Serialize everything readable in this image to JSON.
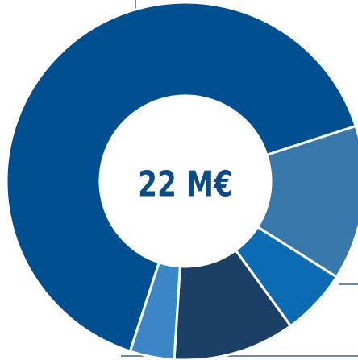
{
  "chart_data": {
    "type": "donut",
    "center_label": "22 M€",
    "values": [
      14,
      6,
      11,
      4,
      65
    ],
    "colors": [
      "#3878ab",
      "#0b6cb3",
      "#1c3f66",
      "#3b86c7",
      "#004f90"
    ]
  }
}
